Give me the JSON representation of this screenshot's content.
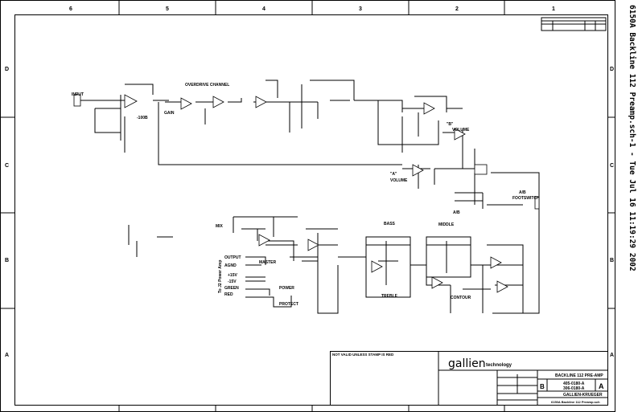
{
  "sheet_file_label": "6150A Backline 112 Preamp.sch-1 - Tue Jul 16 11:19:29 2002",
  "zones": {
    "columns": [
      "6",
      "5",
      "4",
      "3",
      "2",
      "1"
    ],
    "rows": [
      "D",
      "C",
      "B",
      "A"
    ]
  },
  "labels": {
    "input": "INPUT",
    "overdrive_channel": "OVERDRIVE CHANNEL",
    "gain": "GAIN",
    "minus_100db": "-100B",
    "b_volume_tag": "\"B\"",
    "volume": "VOLUME",
    "a_volume_tag": "\"A\"",
    "a_volume": "VOLUME",
    "ab_switch": "A/B",
    "ab_footswitch": "A/B",
    "footswitch": "FOOTSWITCH",
    "mix": "MIX",
    "master": "MASTER",
    "output": "OUTPUT",
    "agnd": "AGND",
    "plus15v": "+15V",
    "minus15v": "-15V",
    "green": "GREEN",
    "red": "RED",
    "to_power_amp": "To J2 Power Amp",
    "power": "POWER",
    "protect": "PROTECT",
    "bass": "BASS",
    "treble": "TREBLE",
    "middle": "MIDDLE",
    "contour": "CONTOUR"
  },
  "stamp_note": "NOT VALID UNLESS STAMP IS RED",
  "title_block": {
    "company": "gallien",
    "company_suffix": "technology",
    "title": "BACKLINE 112 PRE-AMP",
    "size": "B",
    "doc_number_1": "405-0180-A",
    "doc_number_2": "306-0180-A",
    "rev": "A",
    "client": "GALLIEN-KRUEGER",
    "filename": "6150A Backline 112 Preamp.sch"
  },
  "colors": {
    "ink": "#000000",
    "paper": "#ffffff"
  }
}
